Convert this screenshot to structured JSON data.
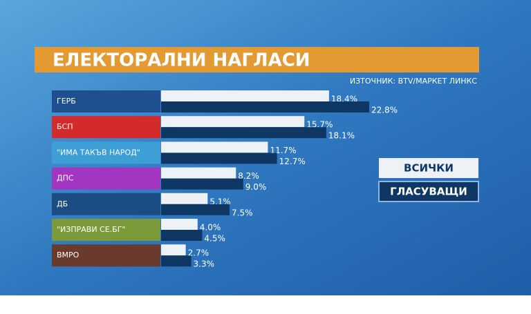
{
  "chart_data": {
    "type": "bar",
    "orientation": "horizontal",
    "title": "ЕЛЕКТОРАЛНИ НАГЛАСИ",
    "subtitle": "ИЗТОЧНИК: BTV/МАРКЕТ ЛИНКС",
    "categories": [
      "ГЕРБ",
      "БСП",
      "\"ИМА ТАКЪВ НАРОД\"",
      "ДПС",
      "ДБ",
      "\"ИЗПРАВИ СЕ.БГ\"",
      "ВМРО"
    ],
    "category_colors": [
      "#1e4f8e",
      "#d32b2b",
      "#3d9fd6",
      "#a236c2",
      "#1c4c84",
      "#7b9b3b",
      "#6a3b2c"
    ],
    "series": [
      {
        "name": "ВСИЧКИ",
        "color": "#eef2f6",
        "values": [
          18.4,
          15.7,
          11.7,
          8.2,
          5.1,
          4.0,
          2.7
        ],
        "value_labels": [
          "18.4%",
          "15.7%",
          "11.7%",
          "8.2%",
          "5.1%",
          "4.0%",
          "2.7%"
        ]
      },
      {
        "name": "ГЛАСУВАЩИ",
        "color": "#0f3764",
        "values": [
          22.8,
          18.1,
          12.7,
          9.0,
          7.5,
          4.5,
          3.3
        ],
        "value_labels": [
          "22.8%",
          "18.1%",
          "12.7%",
          "9.0%",
          "7.5%",
          "4.5%",
          "3.3%"
        ]
      }
    ]
  }
}
